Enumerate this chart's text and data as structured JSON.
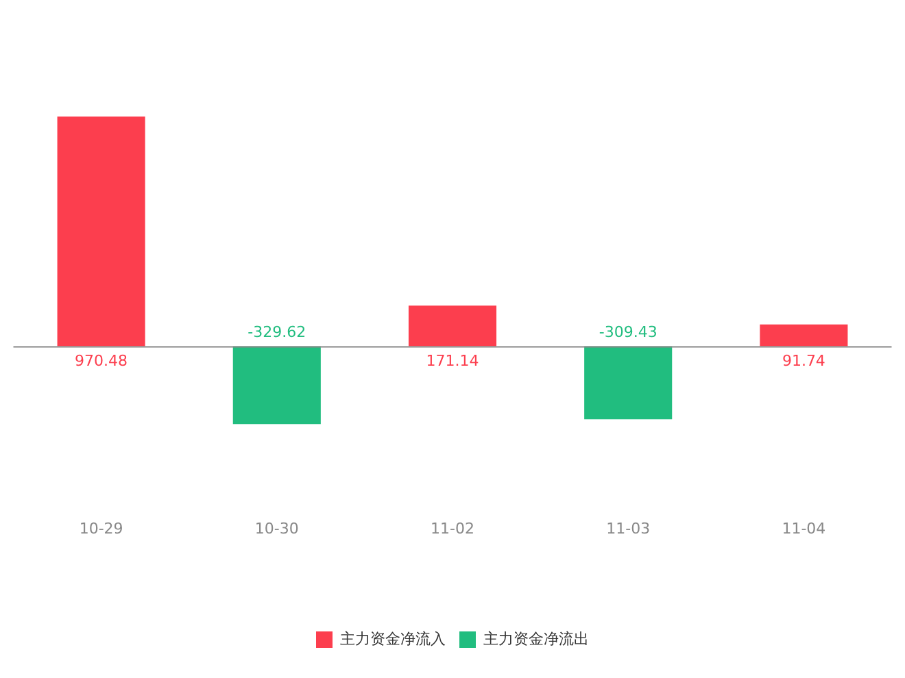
{
  "chart_data": {
    "type": "bar",
    "categories": [
      "10-29",
      "10-30",
      "11-02",
      "11-03",
      "11-04"
    ],
    "series": [
      {
        "name": "主力资金净流入",
        "color": "#fc3e4e",
        "values": [
          970.48,
          null,
          171.14,
          null,
          91.74
        ]
      },
      {
        "name": "主力资金净流出",
        "color": "#21bd7f",
        "values": [
          null,
          -329.62,
          null,
          -309.43,
          null
        ]
      }
    ],
    "data_labels": true,
    "legend": "bottom",
    "grid": false
  }
}
